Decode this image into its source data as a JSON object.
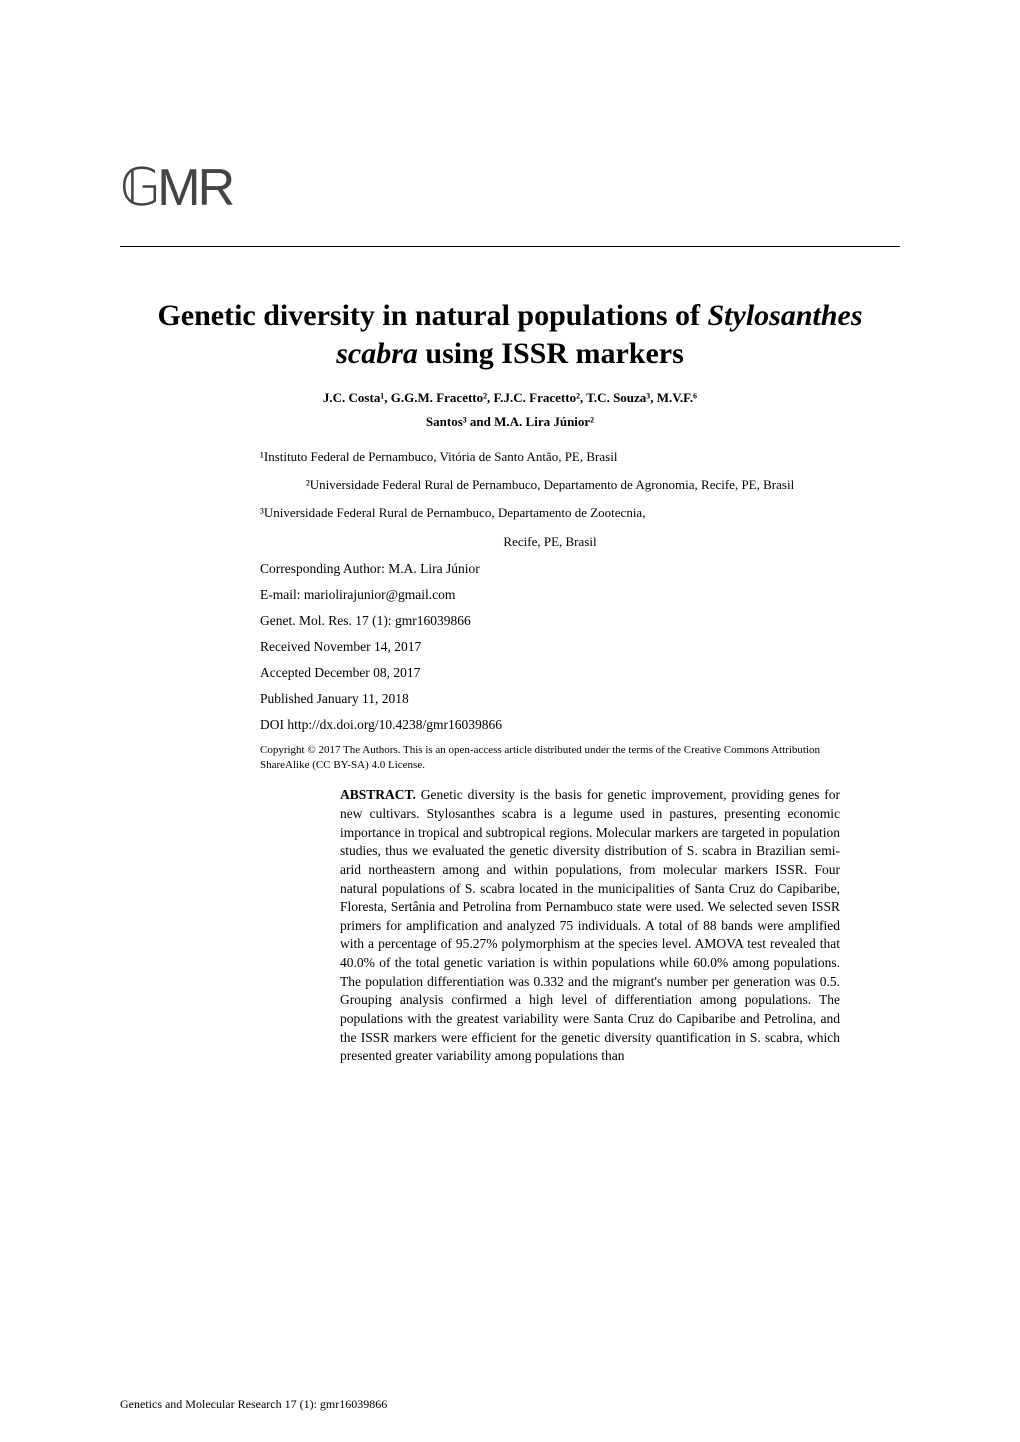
{
  "logo": {
    "text": "GMR"
  },
  "title": {
    "part1": "Genetic diversity in natural populations of ",
    "italic1": "Stylosanthes scabra",
    "part2": " using ISSR markers"
  },
  "authors": {
    "line1": "J.C. Costa¹, G.G.M. Fracetto², F.J.C. Fracetto², T.C. Souza³, M.V.F.⁶",
    "line2": "Santos³ and M.A. Lira Júnior²"
  },
  "affiliations": {
    "aff1": "¹Instituto Federal de Pernambuco, Vitória de Santo Antão, PE, Brasil",
    "aff2": "²Universidade Federal Rural de Pernambuco, Departamento de Agronomia, Recife, PE, Brasil",
    "aff3": "³Universidade Federal Rural de Pernambuco, Departamento de Zootecnia,",
    "aff3b": "Recife, PE, Brasil"
  },
  "meta": {
    "corresponding": "Corresponding Author: M.A. Lira Júnior",
    "email": "E-mail: mariolirajunior@gmail.com",
    "journal": "Genet. Mol. Res. 17 (1): gmr16039866",
    "received": "Received November 14, 2017",
    "accepted": "Accepted December 08, 2017",
    "published": "Published January 11, 2018",
    "doi": "DOI http://dx.doi.org/10.4238/gmr16039866"
  },
  "copyright": "Copyright © 2017 The Authors. This is an open-access article distributed under the terms of the Creative Commons Attribution ShareAlike (CC BY-SA) 4.0 License.",
  "abstract": {
    "label": "ABSTRACT.",
    "text": " Genetic diversity is the basis for genetic improvement, providing genes for new cultivars. Stylosanthes scabra is a legume used in pastures, presenting economic importance in tropical and subtropical regions. Molecular markers are targeted in population studies, thus we evaluated the genetic diversity distribution of S. scabra in Brazilian semi-arid northeastern among and within populations, from molecular markers ISSR. Four natural populations of S. scabra located in the municipalities of Santa Cruz do Capibaribe, Floresta, Sertânia and Petrolina from Pernambuco state were used. We selected seven ISSR primers for amplification and analyzed 75 individuals. A total of 88 bands were amplified with a percentage of 95.27% polymorphism at the species level. AMOVA test revealed that 40.0% of the total genetic variation is within populations while 60.0% among populations. The population differentiation was 0.332 and the migrant's number per generation was 0.5. Grouping analysis confirmed a high level of differentiation among populations. The populations with the greatest variability were Santa Cruz do Capibaribe and Petrolina, and the ISSR markers were efficient for the genetic diversity quantification in S. scabra, which presented greater variability among populations than"
  },
  "footer": "Genetics and Molecular Research 17 (1): gmr16039866"
}
